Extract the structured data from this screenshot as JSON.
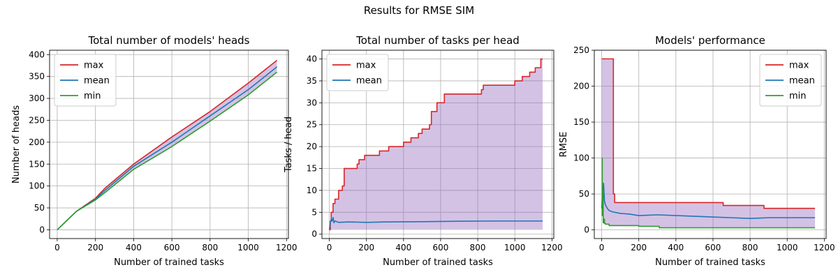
{
  "figure": {
    "suptitle": "Results for RMSE SIM",
    "colors": {
      "max": "#d62728",
      "mean": "#1f77b4",
      "min": "#2ca02c",
      "fill": "#9467bd"
    }
  },
  "chart_data": [
    {
      "type": "line",
      "title": "Total number of models' heads",
      "xlabel": "Number of trained tasks",
      "ylabel": "Number of heads",
      "xlim": [
        -40,
        1210
      ],
      "ylim": [
        -20,
        410
      ],
      "xticks": [
        0,
        200,
        400,
        600,
        800,
        1000,
        1200
      ],
      "yticks": [
        0,
        50,
        100,
        150,
        200,
        250,
        300,
        350,
        400
      ],
      "grid": true,
      "legend_position": "upper-left",
      "fill_between": [
        "min",
        "max"
      ],
      "series": [
        {
          "name": "max",
          "color": "#d62728",
          "x": [
            0,
            100,
            200,
            250,
            400,
            600,
            800,
            1000,
            1150
          ],
          "y": [
            0,
            42,
            72,
            95,
            150,
            212,
            270,
            335,
            387
          ]
        },
        {
          "name": "mean",
          "color": "#1f77b4",
          "x": [
            0,
            100,
            200,
            250,
            400,
            600,
            800,
            1000,
            1150
          ],
          "y": [
            0,
            42,
            70,
            90,
            145,
            200,
            260,
            320,
            372
          ]
        },
        {
          "name": "min",
          "color": "#2ca02c",
          "x": [
            0,
            100,
            200,
            250,
            400,
            600,
            800,
            1000,
            1150
          ],
          "y": [
            0,
            42,
            68,
            85,
            138,
            190,
            248,
            308,
            360
          ]
        }
      ]
    },
    {
      "type": "line",
      "title": "Total number of tasks per head",
      "xlabel": "Number of trained tasks",
      "ylabel": "Tasks / head",
      "xlim": [
        -40,
        1210
      ],
      "ylim": [
        -1,
        42
      ],
      "xticks": [
        0,
        200,
        400,
        600,
        800,
        1000,
        1200
      ],
      "yticks": [
        0,
        5,
        10,
        15,
        20,
        25,
        30,
        35,
        40
      ],
      "grid": true,
      "legend_position": "upper-left",
      "fill_between": [
        "mean",
        "max"
      ],
      "fill_lower_value": 1,
      "series": [
        {
          "name": "max",
          "color": "#d62728",
          "x": [
            0,
            5,
            10,
            20,
            30,
            50,
            70,
            80,
            150,
            160,
            190,
            270,
            290,
            320,
            400,
            440,
            480,
            500,
            540,
            550,
            580,
            620,
            660,
            820,
            830,
            900,
            1000,
            1040,
            1080,
            1110,
            1120,
            1140,
            1150
          ],
          "y": [
            1,
            3,
            5,
            7,
            8,
            10,
            11,
            15,
            16,
            17,
            18,
            19,
            19,
            20,
            21,
            22,
            23,
            24,
            25,
            28,
            30,
            32,
            32,
            33,
            34,
            34,
            35,
            36,
            37,
            38,
            38,
            40,
            40
          ]
        },
        {
          "name": "mean",
          "color": "#1f77b4",
          "x": [
            0,
            5,
            10,
            15,
            20,
            25,
            30,
            50,
            100,
            200,
            300,
            500,
            700,
            900,
            1150
          ],
          "y": [
            1,
            2.5,
            3.5,
            3.0,
            3.8,
            2.6,
            3.0,
            2.7,
            2.8,
            2.7,
            2.8,
            2.85,
            2.95,
            3.0,
            3.0
          ]
        }
      ]
    },
    {
      "type": "line",
      "title": "Models' performance",
      "xlabel": "Number of trained tasks",
      "ylabel": "RMSE",
      "xlim": [
        -40,
        1210
      ],
      "ylim": [
        -12,
        250
      ],
      "xticks": [
        0,
        200,
        400,
        600,
        800,
        1000,
        1200
      ],
      "yticks": [
        0,
        50,
        100,
        150,
        200,
        250
      ],
      "grid": true,
      "legend_position": "upper-right",
      "fill_between": [
        "min",
        "max"
      ],
      "series": [
        {
          "name": "max",
          "color": "#d62728",
          "x": [
            0,
            60,
            63,
            70,
            650,
            655,
            870,
            875,
            1150
          ],
          "y": [
            238,
            238,
            50,
            38,
            38,
            34,
            34,
            30,
            30
          ]
        },
        {
          "name": "mean",
          "color": "#1f77b4",
          "x": [
            0,
            5,
            10,
            15,
            20,
            30,
            40,
            60,
            100,
            150,
            200,
            300,
            500,
            700,
            800,
            900,
            1150
          ],
          "y": [
            30,
            55,
            65,
            40,
            35,
            30,
            27,
            25,
            23,
            22,
            20,
            21,
            19,
            17,
            16,
            17,
            17
          ]
        },
        {
          "name": "min",
          "color": "#2ca02c",
          "x": [
            0,
            3,
            5,
            8,
            10,
            15,
            20,
            40,
            60,
            100,
            200,
            300,
            310,
            1150
          ],
          "y": [
            100,
            20,
            55,
            10,
            15,
            9,
            8,
            6,
            6,
            6,
            5,
            5,
            3,
            3
          ]
        }
      ]
    }
  ]
}
